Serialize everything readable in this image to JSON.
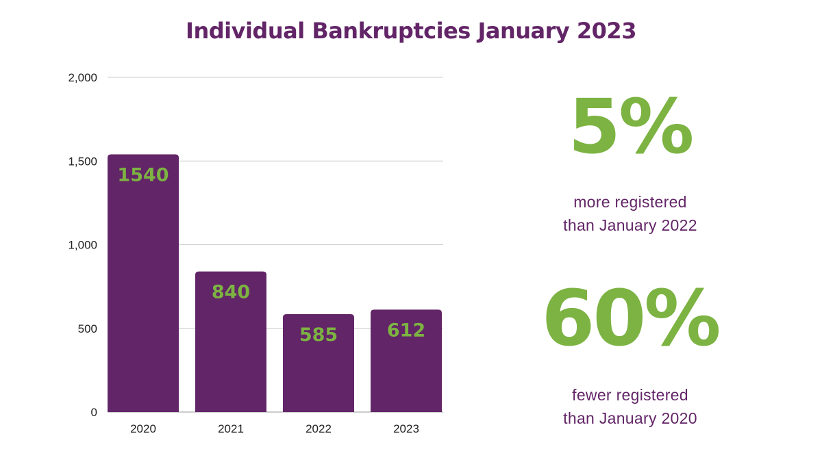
{
  "title": "Individual Bankruptcies January 2023",
  "colors": {
    "bar": "#622567",
    "bar_label": "#7cb342",
    "title": "#622567",
    "stat_value": "#7cb342",
    "stat_caption": "#622567",
    "grid": "#cccccc",
    "axis_text": "#222222"
  },
  "chart_data": {
    "type": "bar",
    "title": "Individual Bankruptcies January 2023",
    "categories": [
      "2020",
      "2021",
      "2022",
      "2023"
    ],
    "values": [
      1540,
      840,
      585,
      612
    ],
    "data_labels": [
      "1540",
      "840",
      "585",
      "612"
    ],
    "xlabel": "",
    "ylabel": "",
    "ylim": [
      0,
      2000
    ],
    "yticks": [
      0,
      500,
      1000,
      1500,
      2000
    ],
    "ytick_labels": [
      "0",
      "500",
      "1,000",
      "1,500",
      "2,000"
    ],
    "grid": true,
    "legend": "none"
  },
  "stats": [
    {
      "value": "5%",
      "caption_line1": "more registered",
      "caption_line2": "than January 2022"
    },
    {
      "value": "60%",
      "caption_line1": "fewer registered",
      "caption_line2": "than January 2020"
    }
  ]
}
